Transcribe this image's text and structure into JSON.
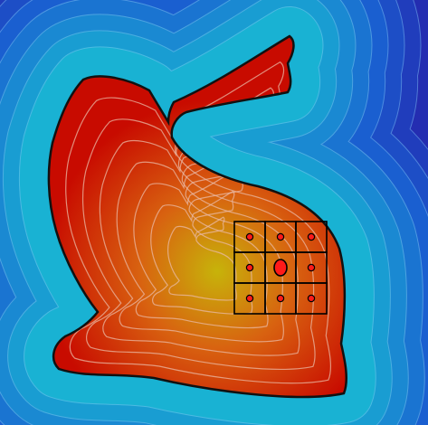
{
  "field": {
    "colors": {
      "outside_far": "#2a0b9d",
      "outside_mid": "#1a5fd0",
      "outside_near": "#19c7d4",
      "inside_edge": "#c80b00",
      "inside_mid": "#d86210",
      "inside_core": "#c7b30a",
      "contour_outside": "#8cc3f3",
      "contour_inside": "#e9b9a6",
      "boundary": "#111111"
    },
    "outside_contour_levels": 10,
    "inside_contour_levels": 7
  },
  "grid": {
    "rows": 3,
    "cols": 3,
    "line_color": "#000000",
    "center_marker": "center-sample",
    "neighbor_marker": "neighbor-sample",
    "marker_fill": "#ff1a1a"
  }
}
